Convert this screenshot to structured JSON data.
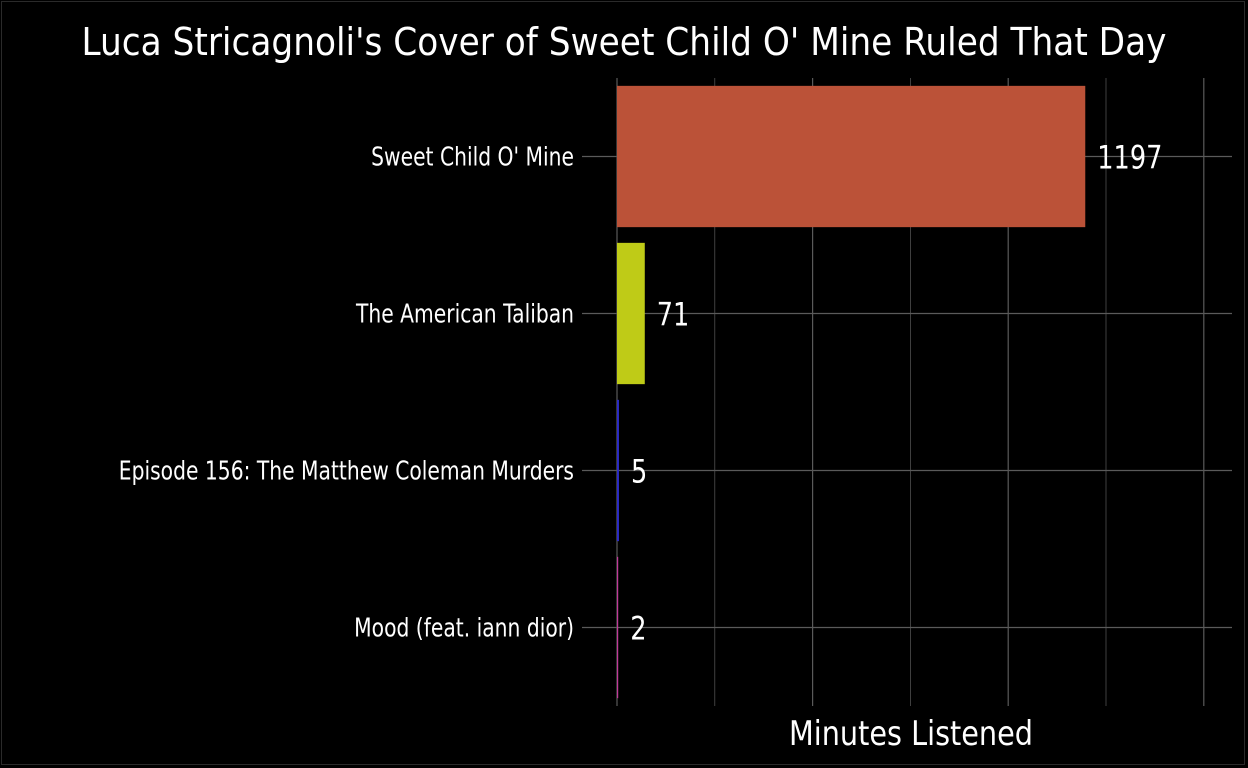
{
  "chart_data": {
    "type": "bar",
    "orientation": "horizontal",
    "title": "Luca Stricagnoli's Cover of Sweet Child O' Mine Ruled That Day",
    "xlabel": "Minutes Listened",
    "ylabel": "",
    "categories": [
      "Sweet Child O' Mine",
      "The American Taliban",
      "Episode 156: The Matthew Coleman Murders",
      "Mood (feat. iann dior)"
    ],
    "values": [
      1197,
      71,
      5,
      2
    ],
    "bar_colors": [
      "#bb5238",
      "#bfcb17",
      "#2b2bc8",
      "#c23a9a"
    ],
    "xlim": [
      0,
      1500
    ],
    "grid": true,
    "x_tick_labels_shown": false,
    "legend": "none"
  },
  "colors": {
    "background": "#000000",
    "grid": "#5a5a5a",
    "text": "#ffffff"
  }
}
